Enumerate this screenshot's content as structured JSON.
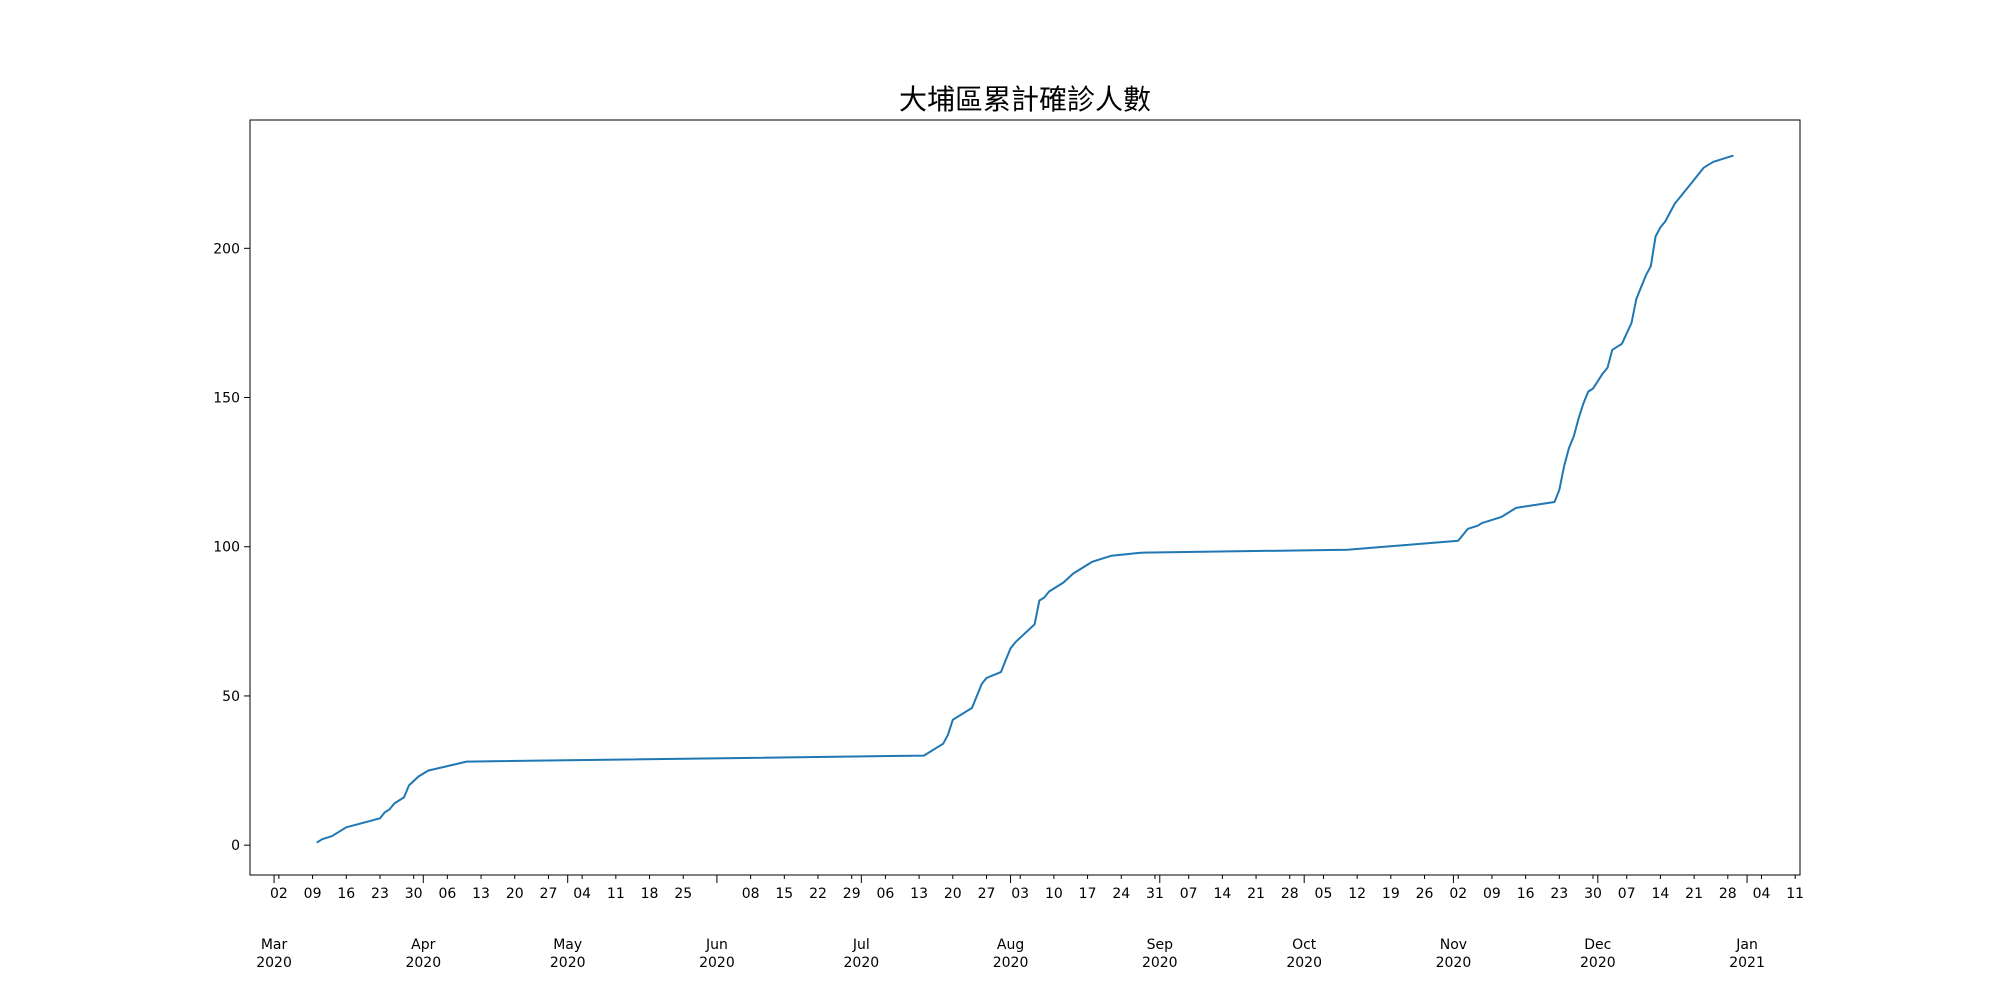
{
  "chart_data": {
    "type": "line",
    "title": "大埔區累計確診人數",
    "xlabel": "",
    "ylabel": "",
    "xlim": [
      "2020-02-25",
      "2021-01-12"
    ],
    "ylim": [
      -10,
      243
    ],
    "grid": false,
    "line_color": "#1f77b4",
    "y_ticks": [
      0,
      50,
      100,
      150,
      200
    ],
    "x_minor_ticks": [
      {
        "date": "2020-03-02",
        "label": "02"
      },
      {
        "date": "2020-03-09",
        "label": "09"
      },
      {
        "date": "2020-03-16",
        "label": "16"
      },
      {
        "date": "2020-03-23",
        "label": "23"
      },
      {
        "date": "2020-03-30",
        "label": "30"
      },
      {
        "date": "2020-04-06",
        "label": "06"
      },
      {
        "date": "2020-04-13",
        "label": "13"
      },
      {
        "date": "2020-04-20",
        "label": "20"
      },
      {
        "date": "2020-04-27",
        "label": "27"
      },
      {
        "date": "2020-05-04",
        "label": "04"
      },
      {
        "date": "2020-05-11",
        "label": "11"
      },
      {
        "date": "2020-05-18",
        "label": "18"
      },
      {
        "date": "2020-05-25",
        "label": "25"
      },
      {
        "date": "2020-06-08",
        "label": "08"
      },
      {
        "date": "2020-06-15",
        "label": "15"
      },
      {
        "date": "2020-06-22",
        "label": "22"
      },
      {
        "date": "2020-06-29",
        "label": "29"
      },
      {
        "date": "2020-07-06",
        "label": "06"
      },
      {
        "date": "2020-07-13",
        "label": "13"
      },
      {
        "date": "2020-07-20",
        "label": "20"
      },
      {
        "date": "2020-07-27",
        "label": "27"
      },
      {
        "date": "2020-08-03",
        "label": "03"
      },
      {
        "date": "2020-08-10",
        "label": "10"
      },
      {
        "date": "2020-08-17",
        "label": "17"
      },
      {
        "date": "2020-08-24",
        "label": "24"
      },
      {
        "date": "2020-08-31",
        "label": "31"
      },
      {
        "date": "2020-09-07",
        "label": "07"
      },
      {
        "date": "2020-09-14",
        "label": "14"
      },
      {
        "date": "2020-09-21",
        "label": "21"
      },
      {
        "date": "2020-09-28",
        "label": "28"
      },
      {
        "date": "2020-10-05",
        "label": "05"
      },
      {
        "date": "2020-10-12",
        "label": "12"
      },
      {
        "date": "2020-10-19",
        "label": "19"
      },
      {
        "date": "2020-10-26",
        "label": "26"
      },
      {
        "date": "2020-11-02",
        "label": "02"
      },
      {
        "date": "2020-11-09",
        "label": "09"
      },
      {
        "date": "2020-11-16",
        "label": "16"
      },
      {
        "date": "2020-11-23",
        "label": "23"
      },
      {
        "date": "2020-11-30",
        "label": "30"
      },
      {
        "date": "2020-12-07",
        "label": "07"
      },
      {
        "date": "2020-12-14",
        "label": "14"
      },
      {
        "date": "2020-12-21",
        "label": "21"
      },
      {
        "date": "2020-12-28",
        "label": "28"
      },
      {
        "date": "2021-01-04",
        "label": "04"
      },
      {
        "date": "2021-01-11",
        "label": "11"
      }
    ],
    "x_major_ticks": [
      {
        "date": "2020-03-01",
        "month": "Mar",
        "year": "2020"
      },
      {
        "date": "2020-04-01",
        "month": "Apr",
        "year": "2020"
      },
      {
        "date": "2020-05-01",
        "month": "May",
        "year": "2020"
      },
      {
        "date": "2020-06-01",
        "month": "Jun",
        "year": "2020"
      },
      {
        "date": "2020-07-01",
        "month": "Jul",
        "year": "2020"
      },
      {
        "date": "2020-08-01",
        "month": "Aug",
        "year": "2020"
      },
      {
        "date": "2020-09-01",
        "month": "Sep",
        "year": "2020"
      },
      {
        "date": "2020-10-01",
        "month": "Oct",
        "year": "2020"
      },
      {
        "date": "2020-11-01",
        "month": "Nov",
        "year": "2020"
      },
      {
        "date": "2020-12-01",
        "month": "Dec",
        "year": "2020"
      },
      {
        "date": "2021-01-01",
        "month": "Jan",
        "year": "2021"
      }
    ],
    "series": [
      {
        "x": [
          "2020-03-10",
          "2020-03-11",
          "2020-03-13",
          "2020-03-16",
          "2020-03-23",
          "2020-03-24",
          "2020-03-25",
          "2020-03-26",
          "2020-03-28",
          "2020-03-29",
          "2020-03-31",
          "2020-04-02",
          "2020-04-10",
          "2020-07-14",
          "2020-07-18",
          "2020-07-19",
          "2020-07-20",
          "2020-07-24",
          "2020-07-25",
          "2020-07-26",
          "2020-07-27",
          "2020-07-30",
          "2020-07-31",
          "2020-08-01",
          "2020-08-02",
          "2020-08-06",
          "2020-08-07",
          "2020-08-08",
          "2020-08-09",
          "2020-08-10",
          "2020-08-12",
          "2020-08-14",
          "2020-08-15",
          "2020-08-17",
          "2020-08-18",
          "2020-08-20",
          "2020-08-22",
          "2020-08-28",
          "2020-10-10",
          "2020-11-02",
          "2020-11-04",
          "2020-11-06",
          "2020-11-07",
          "2020-11-09",
          "2020-11-11",
          "2020-11-12",
          "2020-11-13",
          "2020-11-14",
          "2020-11-22",
          "2020-11-23",
          "2020-11-24",
          "2020-11-25",
          "2020-11-26",
          "2020-11-27",
          "2020-11-28",
          "2020-11-29",
          "2020-11-30",
          "2020-12-02",
          "2020-12-03",
          "2020-12-04",
          "2020-12-05",
          "2020-12-06",
          "2020-12-08",
          "2020-12-09",
          "2020-12-10",
          "2020-12-11",
          "2020-12-12",
          "2020-12-13",
          "2020-12-14",
          "2020-12-15",
          "2020-12-17",
          "2020-12-18",
          "2020-12-19",
          "2020-12-20",
          "2020-12-22",
          "2020-12-23",
          "2020-12-25",
          "2020-12-27",
          "2020-12-29"
        ],
        "y": [
          1,
          2,
          3,
          6,
          9,
          11,
          12,
          14,
          16,
          20,
          23,
          25,
          28,
          30,
          34,
          37,
          42,
          46,
          50,
          54,
          56,
          58,
          62,
          66,
          68,
          74,
          82,
          83,
          85,
          86,
          88,
          91,
          92,
          94,
          95,
          96,
          97,
          98,
          99,
          102,
          106,
          107,
          108,
          109,
          110,
          111,
          112,
          113,
          115,
          119,
          127,
          133,
          137,
          143,
          148,
          152,
          153,
          158,
          160,
          166,
          167,
          168,
          175,
          183,
          187,
          191,
          194,
          204,
          207,
          209,
          215,
          217,
          219,
          221,
          225,
          227,
          229,
          230,
          231
        ]
      }
    ]
  }
}
